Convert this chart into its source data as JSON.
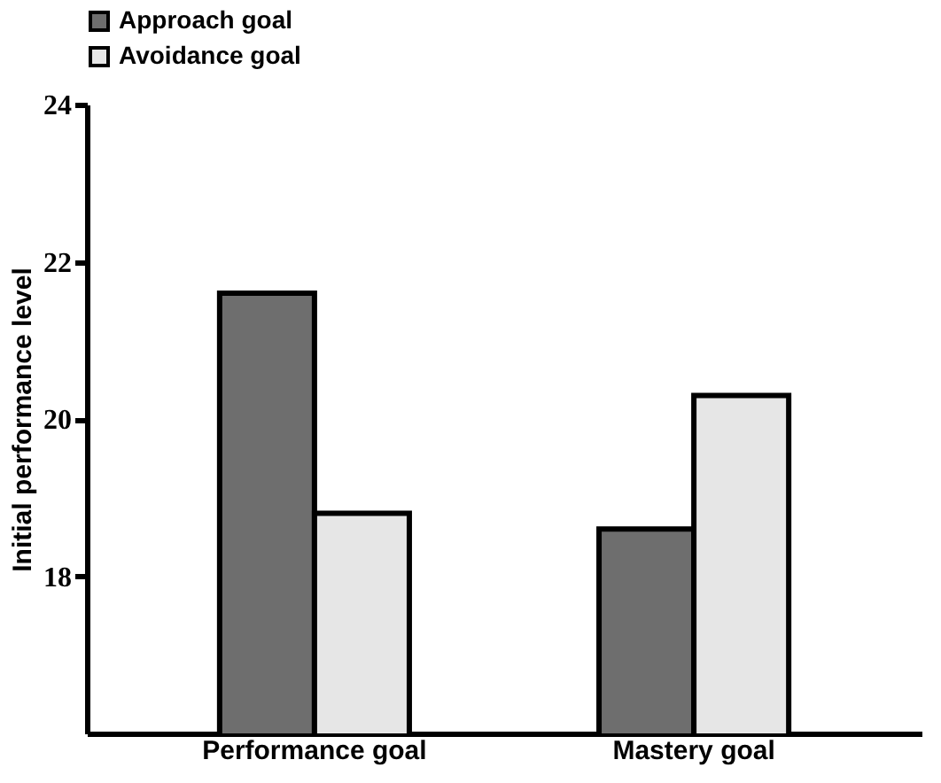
{
  "chart_data": {
    "type": "bar",
    "ylabel": "Initial performance level",
    "categories": [
      "Performance goal",
      "Mastery goal"
    ],
    "series": [
      {
        "name": "Approach goal",
        "color": "#6e6e6e",
        "values": [
          21.6,
          18.6
        ]
      },
      {
        "name": "Avoidance goal",
        "color": "#e6e6e6",
        "values": [
          18.8,
          20.3
        ]
      }
    ],
    "ylim": [
      16,
      24
    ],
    "yticks": [
      18,
      20,
      22,
      24
    ],
    "grid": false,
    "legend": "top"
  }
}
